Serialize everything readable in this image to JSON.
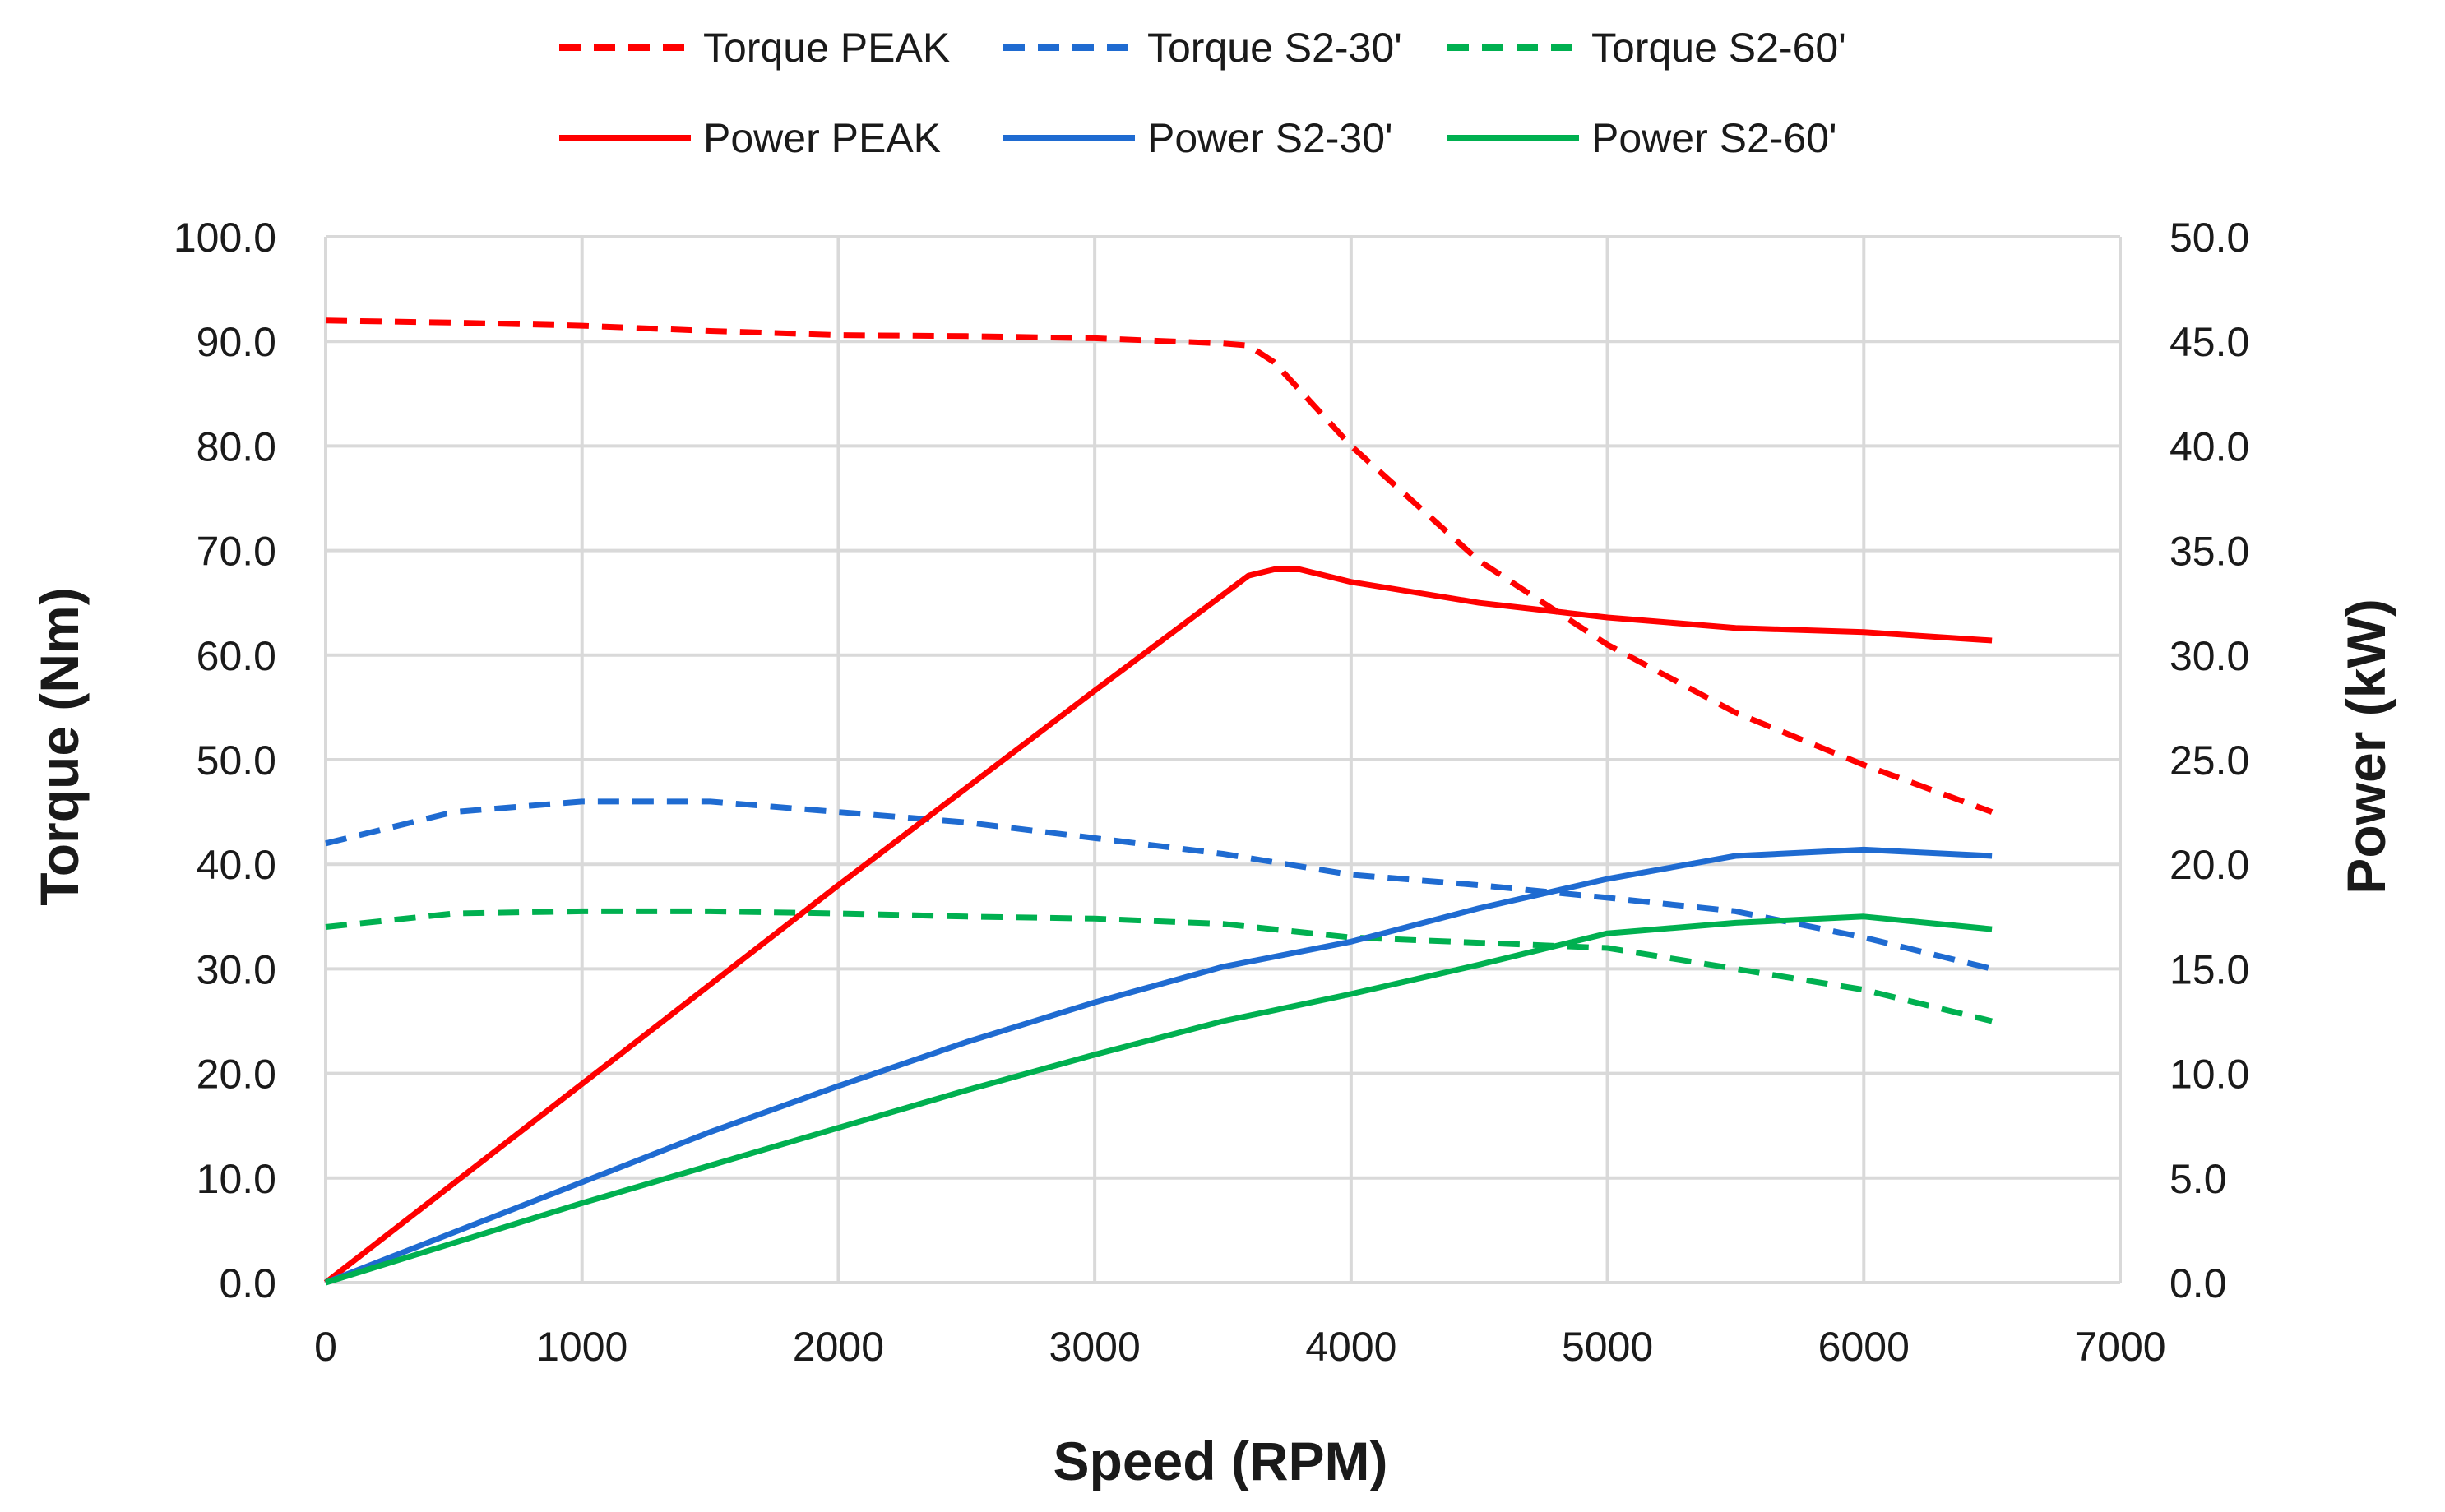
{
  "chart_data": {
    "type": "line",
    "title": "",
    "xlabel": "Speed (RPM)",
    "ylabel_left": "Torque (Nm)",
    "ylabel_right": "Power (kW)",
    "xlim": [
      0,
      7000
    ],
    "ylim_left": [
      0,
      100
    ],
    "ylim_right": [
      0,
      50
    ],
    "x_ticks": [
      0,
      1000,
      2000,
      3000,
      4000,
      5000,
      6000,
      7000
    ],
    "x_tick_labels": [
      "0",
      "1000",
      "2000",
      "3000",
      "4000",
      "5000",
      "6000",
      "7000"
    ],
    "y_left_ticks": [
      0,
      10,
      20,
      30,
      40,
      50,
      60,
      70,
      80,
      90,
      100
    ],
    "y_left_tick_labels": [
      "0.0",
      "10.0",
      "20.0",
      "30.0",
      "40.0",
      "50.0",
      "60.0",
      "70.0",
      "80.0",
      "90.0",
      "100.0"
    ],
    "y_right_ticks": [
      0,
      5,
      10,
      15,
      20,
      25,
      30,
      35,
      40,
      45,
      50
    ],
    "y_right_tick_labels": [
      "0.0",
      "5.0",
      "10.0",
      "15.0",
      "20.0",
      "25.0",
      "30.0",
      "35.0",
      "40.0",
      "45.0",
      "50.0"
    ],
    "grid": true,
    "legend_position": "top",
    "series": [
      {
        "name": "Torque PEAK",
        "axis": "left",
        "style": "dashed",
        "color": "#ff0000",
        "x": [
          0,
          500,
          1000,
          1500,
          2000,
          2500,
          3000,
          3500,
          3600,
          3700,
          4000,
          4500,
          5000,
          5500,
          6000,
          6500
        ],
        "y": [
          92.0,
          91.8,
          91.5,
          91.0,
          90.6,
          90.5,
          90.3,
          89.8,
          89.6,
          88.0,
          80.0,
          69.0,
          61.0,
          54.5,
          49.5,
          45.0
        ]
      },
      {
        "name": "Torque S2-30'",
        "axis": "left",
        "style": "dashed",
        "color": "#1f6bd1",
        "x": [
          0,
          500,
          1000,
          1500,
          2000,
          2500,
          3000,
          3500,
          4000,
          4500,
          5000,
          5500,
          6000,
          6500
        ],
        "y": [
          42.0,
          45.0,
          46.0,
          46.0,
          45.0,
          44.0,
          42.5,
          41.0,
          39.0,
          38.0,
          36.8,
          35.5,
          33.0,
          30.0
        ]
      },
      {
        "name": "Torque S2-60'",
        "axis": "left",
        "style": "dashed",
        "color": "#00b050",
        "x": [
          0,
          500,
          1000,
          1500,
          2000,
          2500,
          3000,
          3500,
          4000,
          4500,
          5000,
          5500,
          6000,
          6500
        ],
        "y": [
          34.0,
          35.3,
          35.5,
          35.5,
          35.3,
          35.0,
          34.8,
          34.3,
          33.0,
          32.5,
          32.0,
          30.0,
          28.0,
          25.0
        ]
      },
      {
        "name": "Power PEAK",
        "axis": "right",
        "style": "solid",
        "color": "#ff0000",
        "x": [
          0,
          1000,
          2000,
          3000,
          3600,
          3700,
          3800,
          4000,
          4500,
          5000,
          5500,
          6000,
          6500
        ],
        "y": [
          0.0,
          9.5,
          19.0,
          28.3,
          33.8,
          34.1,
          34.1,
          33.5,
          32.5,
          31.8,
          31.3,
          31.1,
          30.7
        ]
      },
      {
        "name": "Power S2-30'",
        "axis": "right",
        "style": "solid",
        "color": "#1f6bd1",
        "x": [
          0,
          500,
          1000,
          1500,
          2000,
          2500,
          3000,
          3500,
          4000,
          4500,
          5000,
          5500,
          6000,
          6500
        ],
        "y": [
          0.0,
          2.4,
          4.8,
          7.2,
          9.4,
          11.5,
          13.4,
          15.1,
          16.3,
          17.9,
          19.3,
          20.4,
          20.7,
          20.4
        ]
      },
      {
        "name": "Power S2-60'",
        "axis": "right",
        "style": "solid",
        "color": "#00b050",
        "x": [
          0,
          500,
          1000,
          1500,
          2000,
          2500,
          3000,
          3500,
          4000,
          4500,
          5000,
          5500,
          6000,
          6500
        ],
        "y": [
          0.0,
          1.9,
          3.8,
          5.6,
          7.4,
          9.2,
          10.9,
          12.5,
          13.8,
          15.2,
          16.7,
          17.2,
          17.5,
          16.9
        ]
      }
    ]
  }
}
